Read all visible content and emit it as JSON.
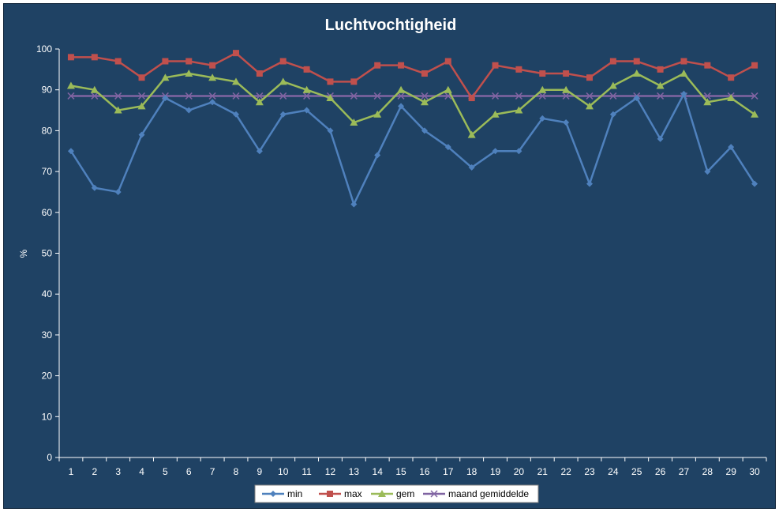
{
  "chart_data": {
    "type": "line",
    "title": "Luchtvochtigheid",
    "xlabel": "",
    "ylabel": "%",
    "ylim": [
      0,
      100
    ],
    "yticks": [
      0,
      10,
      20,
      30,
      40,
      50,
      60,
      70,
      80,
      90,
      100
    ],
    "x": [
      1,
      2,
      3,
      4,
      5,
      6,
      7,
      8,
      9,
      10,
      11,
      12,
      13,
      14,
      15,
      16,
      17,
      18,
      19,
      20,
      21,
      22,
      23,
      24,
      25,
      26,
      27,
      28,
      29,
      30
    ],
    "grid": false,
    "legend_position": "bottom",
    "series": [
      {
        "name": "min",
        "color": "#4f81bd",
        "marker": "diamond",
        "values": [
          75,
          66,
          65,
          79,
          88,
          85,
          87,
          84,
          75,
          84,
          85,
          80,
          62,
          74,
          86,
          80,
          76,
          71,
          75,
          75,
          83,
          82,
          67,
          84,
          88,
          78,
          89,
          70,
          76,
          67
        ]
      },
      {
        "name": "max",
        "color": "#c0504d",
        "marker": "square",
        "values": [
          98,
          98,
          97,
          93,
          97,
          97,
          96,
          99,
          94,
          97,
          95,
          92,
          92,
          96,
          96,
          94,
          97,
          88,
          96,
          95,
          94,
          94,
          93,
          97,
          97,
          95,
          97,
          96,
          93,
          96
        ]
      },
      {
        "name": "gem",
        "color": "#9bbb59",
        "marker": "triangle",
        "values": [
          91,
          90,
          85,
          86,
          93,
          94,
          93,
          92,
          87,
          92,
          90,
          88,
          82,
          84,
          90,
          87,
          90,
          79,
          84,
          85,
          90,
          90,
          86,
          91,
          94,
          91,
          94,
          87,
          88,
          84
        ]
      },
      {
        "name": "maand gemiddelde",
        "color": "#8064a2",
        "marker": "x",
        "values": [
          88.5,
          88.5,
          88.5,
          88.5,
          88.5,
          88.5,
          88.5,
          88.5,
          88.5,
          88.5,
          88.5,
          88.5,
          88.5,
          88.5,
          88.5,
          88.5,
          88.5,
          88.5,
          88.5,
          88.5,
          88.5,
          88.5,
          88.5,
          88.5,
          88.5,
          88.5,
          88.5,
          88.5,
          88.5,
          88.5
        ]
      }
    ]
  }
}
